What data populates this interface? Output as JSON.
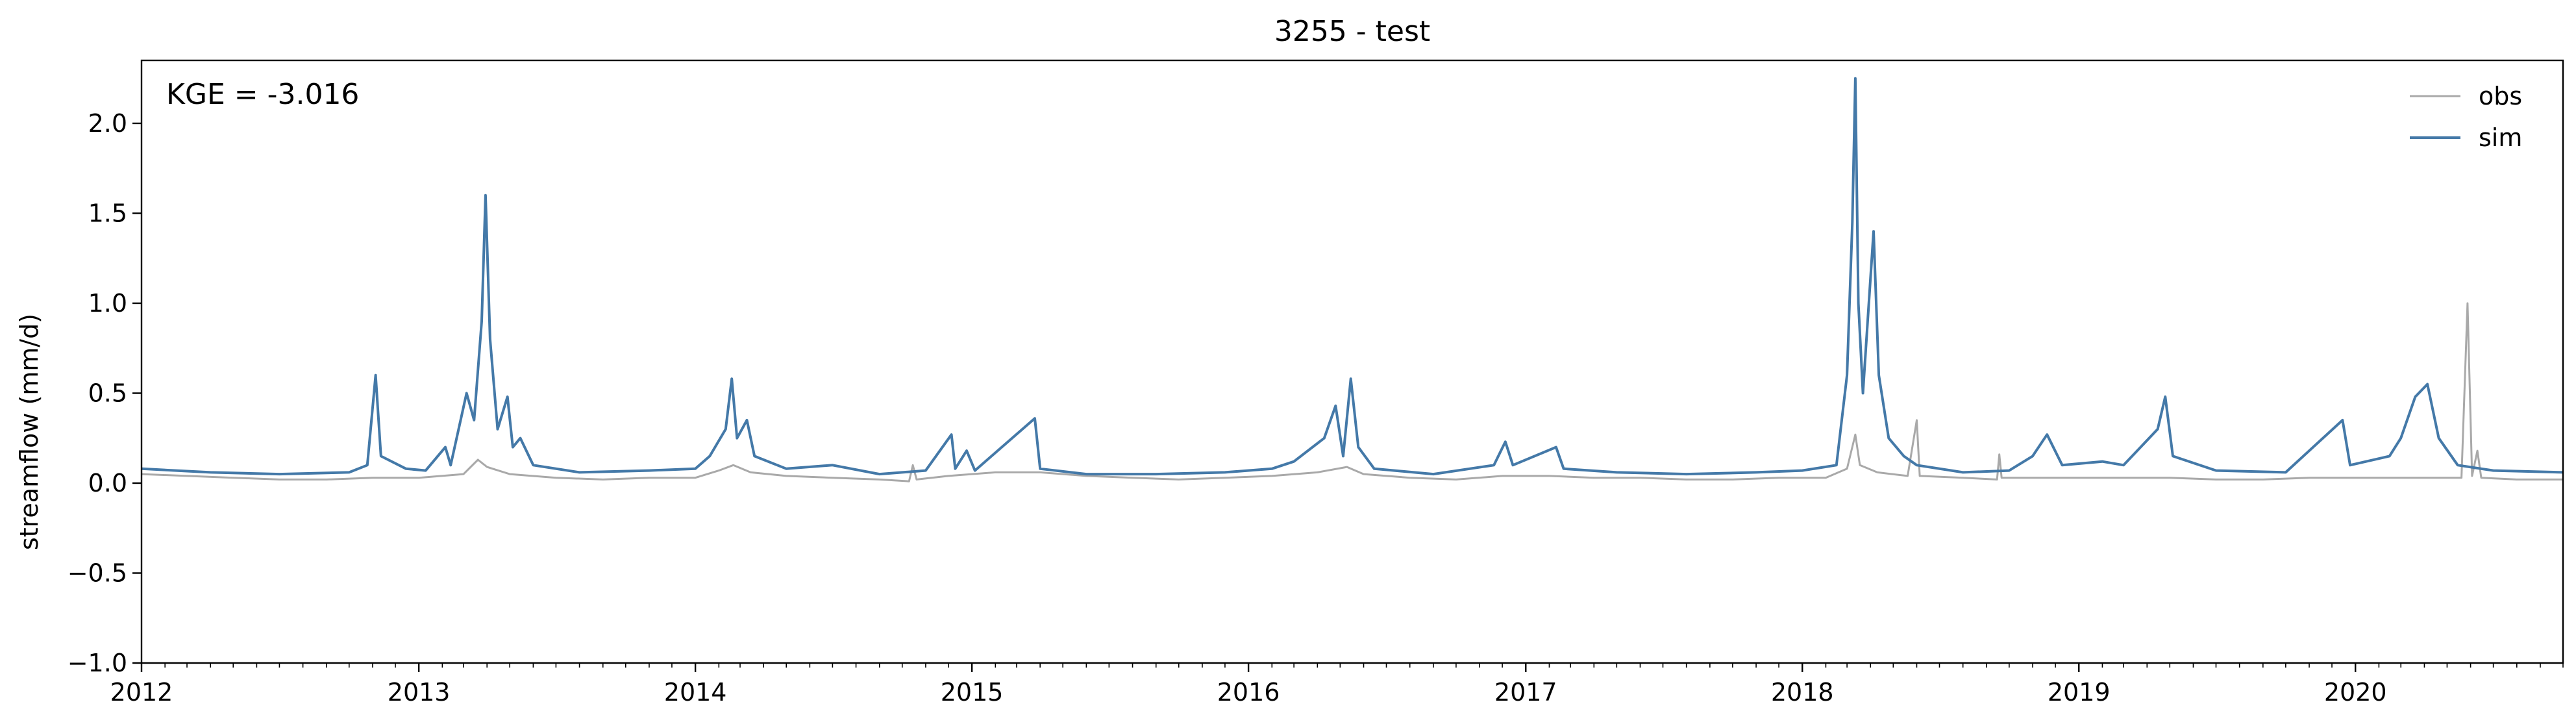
{
  "chart_data": {
    "type": "line",
    "title": "3255 - test",
    "xlabel": "",
    "ylabel": "streamflow (mm/d)",
    "annotation": "KGE = -3.016",
    "xlim": [
      "2012-01-01",
      "2020-10-01"
    ],
    "ylim": [
      -1.0,
      2.35
    ],
    "yticks": [
      -1.0,
      -0.5,
      0.0,
      0.5,
      1.0,
      1.5,
      2.0
    ],
    "yticklabels": [
      "−1.0",
      "−0.5",
      "0.0",
      "0.5",
      "1.0",
      "1.5",
      "2.0"
    ],
    "xticks": [
      "2012-01-01",
      "2013-01-01",
      "2014-01-01",
      "2015-01-01",
      "2016-01-01",
      "2017-01-01",
      "2018-01-01",
      "2019-01-01",
      "2020-01-01"
    ],
    "xticklabels": [
      "2012",
      "2013",
      "2014",
      "2015",
      "2016",
      "2017",
      "2018",
      "2019",
      "2020"
    ],
    "grid": false,
    "legend_position": "top-right",
    "series": [
      {
        "name": "obs",
        "color": "#a9a9a9",
        "points": [
          [
            "2012-01-01",
            0.05
          ],
          [
            "2012-03-01",
            0.04
          ],
          [
            "2012-05-01",
            0.03
          ],
          [
            "2012-07-01",
            0.02
          ],
          [
            "2012-09-01",
            0.02
          ],
          [
            "2012-11-01",
            0.03
          ],
          [
            "2013-01-01",
            0.03
          ],
          [
            "2013-03-01",
            0.05
          ],
          [
            "2013-03-20",
            0.13
          ],
          [
            "2013-04-01",
            0.09
          ],
          [
            "2013-05-01",
            0.05
          ],
          [
            "2013-07-01",
            0.03
          ],
          [
            "2013-09-01",
            0.02
          ],
          [
            "2013-11-01",
            0.03
          ],
          [
            "2014-01-01",
            0.03
          ],
          [
            "2014-02-01",
            0.07
          ],
          [
            "2014-02-20",
            0.1
          ],
          [
            "2014-03-15",
            0.06
          ],
          [
            "2014-05-01",
            0.04
          ],
          [
            "2014-07-01",
            0.03
          ],
          [
            "2014-09-01",
            0.02
          ],
          [
            "2014-10-10",
            0.01
          ],
          [
            "2014-10-15",
            0.1
          ],
          [
            "2014-10-20",
            0.02
          ],
          [
            "2014-12-01",
            0.04
          ],
          [
            "2015-02-01",
            0.06
          ],
          [
            "2015-04-01",
            0.06
          ],
          [
            "2015-06-01",
            0.04
          ],
          [
            "2015-08-01",
            0.03
          ],
          [
            "2015-10-01",
            0.02
          ],
          [
            "2015-12-01",
            0.03
          ],
          [
            "2016-02-01",
            0.04
          ],
          [
            "2016-04-01",
            0.06
          ],
          [
            "2016-05-10",
            0.09
          ],
          [
            "2016-06-01",
            0.05
          ],
          [
            "2016-08-01",
            0.03
          ],
          [
            "2016-10-01",
            0.02
          ],
          [
            "2016-12-01",
            0.04
          ],
          [
            "2017-02-01",
            0.04
          ],
          [
            "2017-04-01",
            0.03
          ],
          [
            "2017-06-01",
            0.03
          ],
          [
            "2017-08-01",
            0.02
          ],
          [
            "2017-10-01",
            0.02
          ],
          [
            "2017-12-01",
            0.03
          ],
          [
            "2018-02-01",
            0.03
          ],
          [
            "2018-03-01",
            0.08
          ],
          [
            "2018-03-12",
            0.27
          ],
          [
            "2018-03-18",
            0.1
          ],
          [
            "2018-04-10",
            0.06
          ],
          [
            "2018-05-20",
            0.04
          ],
          [
            "2018-06-01",
            0.35
          ],
          [
            "2018-06-05",
            0.04
          ],
          [
            "2018-08-01",
            0.03
          ],
          [
            "2018-09-15",
            0.02
          ],
          [
            "2018-09-18",
            0.16
          ],
          [
            "2018-09-21",
            0.03
          ],
          [
            "2018-11-01",
            0.03
          ],
          [
            "2019-01-01",
            0.03
          ],
          [
            "2019-03-01",
            0.03
          ],
          [
            "2019-05-01",
            0.03
          ],
          [
            "2019-07-01",
            0.02
          ],
          [
            "2019-09-01",
            0.02
          ],
          [
            "2019-11-01",
            0.03
          ],
          [
            "2020-01-01",
            0.03
          ],
          [
            "2020-03-01",
            0.03
          ],
          [
            "2020-05-20",
            0.03
          ],
          [
            "2020-05-28",
            1.0
          ],
          [
            "2020-06-03",
            0.04
          ],
          [
            "2020-06-10",
            0.18
          ],
          [
            "2020-06-15",
            0.03
          ],
          [
            "2020-08-01",
            0.02
          ],
          [
            "2020-10-01",
            0.02
          ]
        ]
      },
      {
        "name": "sim",
        "color": "#4479a8",
        "points": [
          [
            "2012-01-01",
            0.08
          ],
          [
            "2012-04-01",
            0.06
          ],
          [
            "2012-07-01",
            0.05
          ],
          [
            "2012-10-01",
            0.06
          ],
          [
            "2012-10-25",
            0.1
          ],
          [
            "2012-11-05",
            0.6
          ],
          [
            "2012-11-12",
            0.15
          ],
          [
            "2012-12-15",
            0.08
          ],
          [
            "2013-01-10",
            0.07
          ],
          [
            "2013-02-05",
            0.2
          ],
          [
            "2013-02-12",
            0.1
          ],
          [
            "2013-03-05",
            0.5
          ],
          [
            "2013-03-15",
            0.35
          ],
          [
            "2013-03-25",
            0.9
          ],
          [
            "2013-03-30",
            1.6
          ],
          [
            "2013-04-05",
            0.8
          ],
          [
            "2013-04-15",
            0.3
          ],
          [
            "2013-04-28",
            0.48
          ],
          [
            "2013-05-05",
            0.2
          ],
          [
            "2013-05-15",
            0.25
          ],
          [
            "2013-06-01",
            0.1
          ],
          [
            "2013-08-01",
            0.06
          ],
          [
            "2013-11-01",
            0.07
          ],
          [
            "2014-01-01",
            0.08
          ],
          [
            "2014-01-20",
            0.15
          ],
          [
            "2014-02-10",
            0.3
          ],
          [
            "2014-02-18",
            0.58
          ],
          [
            "2014-02-25",
            0.25
          ],
          [
            "2014-03-10",
            0.35
          ],
          [
            "2014-03-20",
            0.15
          ],
          [
            "2014-05-01",
            0.08
          ],
          [
            "2014-07-01",
            0.1
          ],
          [
            "2014-09-01",
            0.05
          ],
          [
            "2014-11-01",
            0.07
          ],
          [
            "2014-12-05",
            0.27
          ],
          [
            "2014-12-10",
            0.08
          ],
          [
            "2014-12-25",
            0.18
          ],
          [
            "2015-01-05",
            0.07
          ],
          [
            "2015-03-25",
            0.36
          ],
          [
            "2015-04-01",
            0.08
          ],
          [
            "2015-06-01",
            0.05
          ],
          [
            "2015-09-01",
            0.05
          ],
          [
            "2015-12-01",
            0.06
          ],
          [
            "2016-02-01",
            0.08
          ],
          [
            "2016-03-01",
            0.12
          ],
          [
            "2016-04-10",
            0.25
          ],
          [
            "2016-04-25",
            0.43
          ],
          [
            "2016-05-05",
            0.15
          ],
          [
            "2016-05-15",
            0.58
          ],
          [
            "2016-05-25",
            0.2
          ],
          [
            "2016-06-15",
            0.08
          ],
          [
            "2016-09-01",
            0.05
          ],
          [
            "2016-11-20",
            0.1
          ],
          [
            "2016-12-05",
            0.23
          ],
          [
            "2016-12-15",
            0.1
          ],
          [
            "2017-02-10",
            0.2
          ],
          [
            "2017-02-20",
            0.08
          ],
          [
            "2017-05-01",
            0.06
          ],
          [
            "2017-08-01",
            0.05
          ],
          [
            "2017-11-01",
            0.06
          ],
          [
            "2018-01-01",
            0.07
          ],
          [
            "2018-02-15",
            0.1
          ],
          [
            "2018-03-01",
            0.6
          ],
          [
            "2018-03-08",
            1.45
          ],
          [
            "2018-03-12",
            2.25
          ],
          [
            "2018-03-16",
            1.0
          ],
          [
            "2018-03-22",
            0.5
          ],
          [
            "2018-04-05",
            1.4
          ],
          [
            "2018-04-12",
            0.6
          ],
          [
            "2018-04-25",
            0.25
          ],
          [
            "2018-05-15",
            0.15
          ],
          [
            "2018-06-01",
            0.1
          ],
          [
            "2018-08-01",
            0.06
          ],
          [
            "2018-10-01",
            0.07
          ],
          [
            "2018-11-01",
            0.15
          ],
          [
            "2018-11-20",
            0.27
          ],
          [
            "2018-12-10",
            0.1
          ],
          [
            "2019-02-01",
            0.12
          ],
          [
            "2019-03-01",
            0.1
          ],
          [
            "2019-04-15",
            0.3
          ],
          [
            "2019-04-25",
            0.48
          ],
          [
            "2019-05-05",
            0.15
          ],
          [
            "2019-07-01",
            0.07
          ],
          [
            "2019-10-01",
            0.06
          ],
          [
            "2019-12-15",
            0.35
          ],
          [
            "2019-12-25",
            0.1
          ],
          [
            "2020-02-15",
            0.15
          ],
          [
            "2020-03-01",
            0.25
          ],
          [
            "2020-03-20",
            0.48
          ],
          [
            "2020-04-05",
            0.55
          ],
          [
            "2020-04-20",
            0.25
          ],
          [
            "2020-05-15",
            0.1
          ],
          [
            "2020-07-01",
            0.07
          ],
          [
            "2020-10-01",
            0.06
          ]
        ]
      }
    ]
  }
}
